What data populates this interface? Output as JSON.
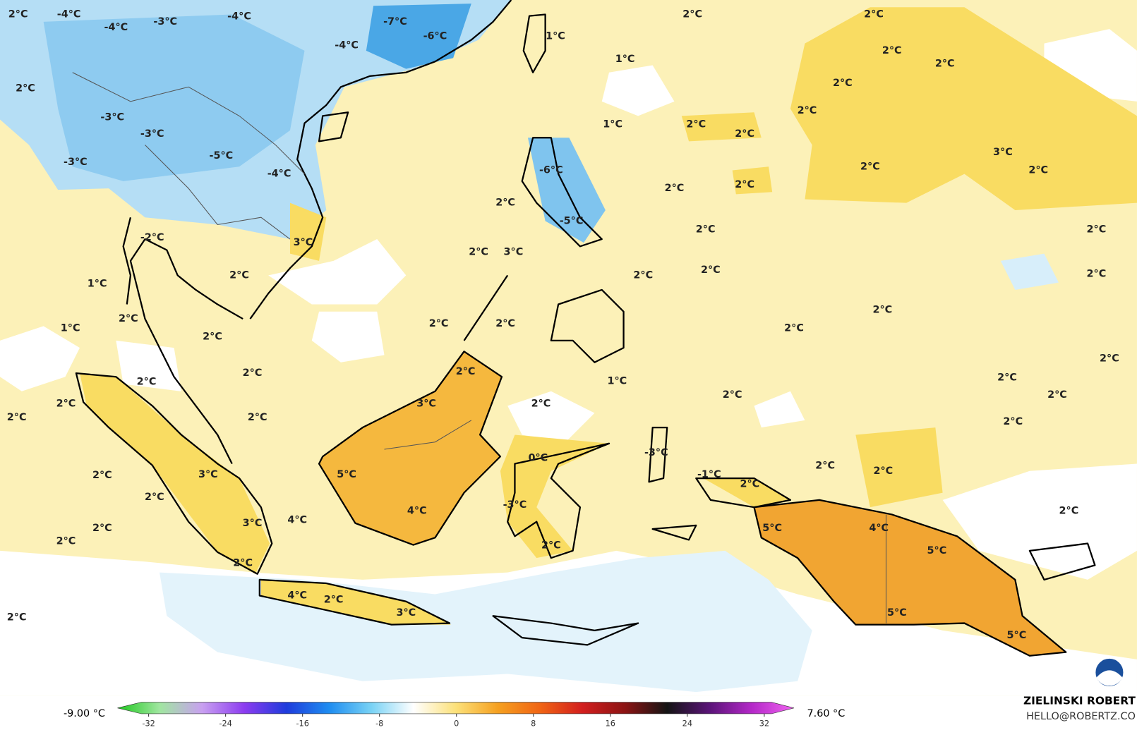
{
  "map": {
    "labels": [
      "2°C",
      "-4°C",
      "-4°C",
      "-3°C",
      "-4°C",
      "-7°C",
      "-6°C",
      "-4°C",
      "1°C",
      "2°C",
      "2°C",
      "2°C",
      "2°C",
      "1°C",
      "2°C",
      "2°C",
      "2°C",
      "-3°C",
      "-3°C",
      "1°C",
      "2°C",
      "2°C",
      "3°C",
      "-5°C",
      "-3°C",
      "2°C",
      "2°C",
      "-4°C",
      "-6°C",
      "2°C",
      "2°C",
      "2°C",
      "-5°C",
      "2°C",
      "2°C",
      "-2°C",
      "3°C",
      "2°C",
      "3°C",
      "2°C",
      "2°C",
      "2°C",
      "2°C",
      "1°C",
      "2°C",
      "2°C",
      "2°C",
      "1°C",
      "2°C",
      "2°C",
      "2°C",
      "2°C",
      "2°C",
      "2°C",
      "2°C",
      "1°C",
      "2°C",
      "3°C",
      "2°C",
      "2°C",
      "2°C",
      "2°C",
      "2°C",
      "2°C",
      "2°C",
      "0°C",
      "-3°C",
      "5°C",
      "2°C",
      "3°C",
      "2°C",
      "2°C",
      "-1°C",
      "2°C",
      "2°C",
      "-3°C",
      "4°C",
      "3°C",
      "4°C",
      "2°C",
      "2°C",
      "5°C",
      "4°C",
      "2°C",
      "2°C",
      "5°C",
      "2°C",
      "4°C",
      "2°C",
      "3°C",
      "2°C",
      "5°C",
      "5°C"
    ]
  },
  "colorbar": {
    "min_label": "-9.00 °C",
    "max_label": "7.60 °C",
    "ticks": [
      -32,
      -24,
      -16,
      -8,
      0,
      8,
      16,
      24,
      32
    ],
    "colors": [
      "#1ec81e",
      "#a0e6a0",
      "#c8a0f0",
      "#8c3cf0",
      "#1e3cdc",
      "#1e8cf0",
      "#78d2f5",
      "#ffffff",
      "#fce17a",
      "#f5a020",
      "#f06414",
      "#d21e1e",
      "#8c1414",
      "#141414",
      "#5a1478",
      "#b428c8",
      "#f064f0"
    ]
  },
  "credits": {
    "author": "ZIELINSKI ROBERT",
    "contact": "HELLO@ROBERTZ.CO"
  }
}
